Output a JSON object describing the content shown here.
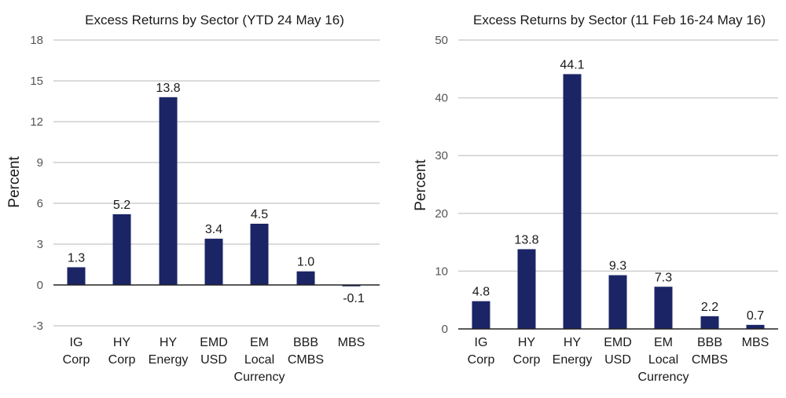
{
  "colors": {
    "bar": "#1b2566",
    "grid": "#cfcfcf",
    "axis": "#222222"
  },
  "chart_data": [
    {
      "type": "bar",
      "title": "Excess Returns by Sector (YTD 24 May 16)",
      "ylabel": "Percent",
      "xlabel": "",
      "ylim": [
        -3,
        18
      ],
      "yticks": [
        -3,
        0,
        3,
        6,
        9,
        12,
        15,
        18
      ],
      "grid": true,
      "categories": [
        [
          "IG",
          "Corp"
        ],
        [
          "HY",
          "Corp"
        ],
        [
          "HY",
          "Energy"
        ],
        [
          "EMD",
          "USD"
        ],
        [
          "EM",
          "Local",
          "Currency"
        ],
        [
          "BBB",
          "CMBS"
        ],
        [
          "MBS"
        ]
      ],
      "values": [
        1.3,
        5.2,
        13.8,
        3.4,
        4.5,
        1.0,
        -0.1
      ],
      "data_labels": [
        "1.3",
        "5.2",
        "13.8",
        "3.4",
        "4.5",
        "1.0",
        "-0.1"
      ]
    },
    {
      "type": "bar",
      "title": "Excess Returns by Sector (11 Feb 16-24 May 16)",
      "ylabel": "Percent",
      "xlabel": "",
      "ylim": [
        0,
        50
      ],
      "yticks": [
        0,
        10,
        20,
        30,
        40,
        50
      ],
      "grid": true,
      "categories": [
        [
          "IG",
          "Corp"
        ],
        [
          "HY",
          "Corp"
        ],
        [
          "HY",
          "Energy"
        ],
        [
          "EMD",
          "USD"
        ],
        [
          "EM",
          "Local",
          "Currency"
        ],
        [
          "BBB",
          "CMBS"
        ],
        [
          "MBS"
        ]
      ],
      "values": [
        4.8,
        13.8,
        44.1,
        9.3,
        7.3,
        2.2,
        0.7
      ],
      "data_labels": [
        "4.8",
        "13.8",
        "44.1",
        "9.3",
        "7.3",
        "2.2",
        "0.7"
      ]
    }
  ]
}
